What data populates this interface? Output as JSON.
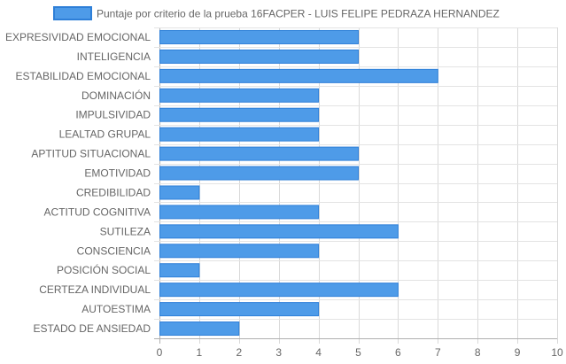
{
  "chart_data": {
    "type": "bar",
    "orientation": "horizontal",
    "categories": [
      "EXPRESIVIDAD EMOCIONAL",
      "INTELIGENCIA",
      "ESTABILIDAD EMOCIONAL",
      "DOMINACIÓN",
      "IMPULSIVIDAD",
      "LEALTAD GRUPAL",
      "APTITUD SITUACIONAL",
      "EMOTIVIDAD",
      "CREDIBILIDAD",
      "ACTITUD COGNITIVA",
      "SUTILEZA",
      "CONSCIENCIA",
      "POSICIÓN SOCIAL",
      "CERTEZA INDIVIDUAL",
      "AUTOESTIMA",
      "ESTADO DE ANSIEDAD"
    ],
    "series": [
      {
        "name": "Puntaje por criterio de la prueba 16FACPER - LUIS FELIPE PEDRAZA HERNANDEZ",
        "values": [
          5,
          5,
          7,
          4,
          4,
          4,
          5,
          5,
          1,
          4,
          6,
          4,
          1,
          6,
          4,
          2
        ],
        "color": "#4e9be8",
        "border_color": "#2e7fd8"
      }
    ],
    "xlim": [
      0,
      10
    ],
    "x_ticks": [
      "0",
      "1",
      "2",
      "3",
      "4",
      "5",
      "6",
      "7",
      "8",
      "9",
      "10"
    ],
    "grid": true,
    "legend_position": "top-center"
  }
}
